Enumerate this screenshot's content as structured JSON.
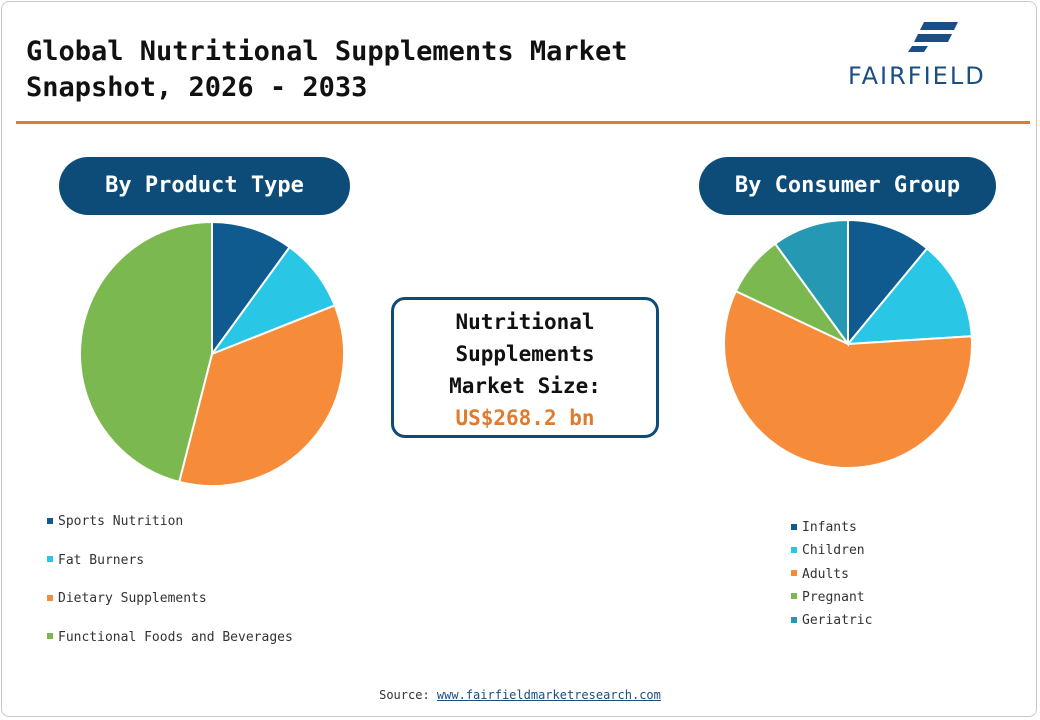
{
  "header": {
    "title_line1": "Global Nutritional Supplements Market",
    "title_line2": "Snapshot, 2026 - 2033",
    "logo_text": "FAIRFIELD",
    "logo_icon": "fairfield-logo-icon"
  },
  "center": {
    "line1": "Nutritional",
    "line2": "Supplements",
    "line3": "Market Size:",
    "value": "US$268.2 bn"
  },
  "footer": {
    "source_label": "Source:",
    "source_link": "www.fairfieldmarketresearch.com"
  },
  "chart_data": [
    {
      "type": "pie",
      "title": "By Product Type",
      "categories": [
        "Sports Nutrition",
        "Fat Burners",
        "Dietary Supplements",
        "Functional Foods and Beverages"
      ],
      "values": [
        10,
        9,
        35,
        46
      ],
      "colors": [
        "#0f5b8f",
        "#29c6e6",
        "#f68b3a",
        "#7bb84f"
      ],
      "legend_placement": "bottom-left"
    },
    {
      "type": "pie",
      "title": "By Consumer Group",
      "categories": [
        "Infants",
        "Children",
        "Adults",
        "Pregnant",
        "Geriatric"
      ],
      "values": [
        11,
        13,
        58,
        8,
        10
      ],
      "colors": [
        "#0f5b8f",
        "#29c6e6",
        "#f68b3a",
        "#7bb84f",
        "#2599b4"
      ],
      "legend_placement": "bottom-right"
    }
  ]
}
